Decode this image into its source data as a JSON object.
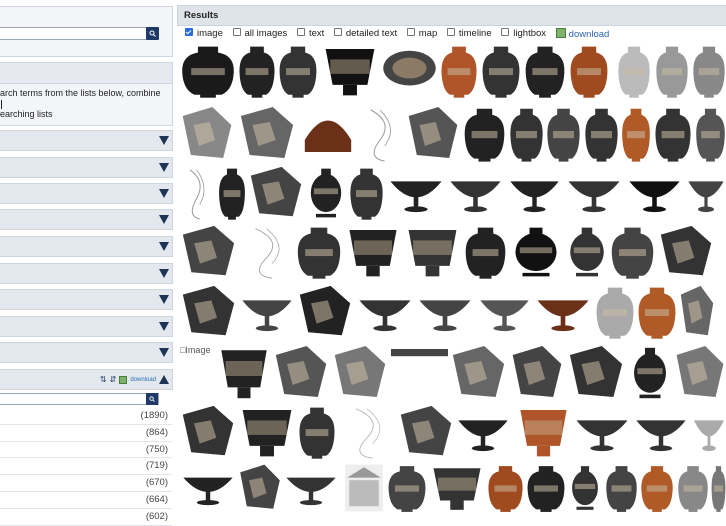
{
  "left": {
    "info_text_lines": [
      "arch terms from the lists below, combine",
      "earching lists"
    ],
    "facet_count": 9,
    "counts": [
      "(1890)",
      "(864)",
      "(750)",
      "(719)",
      "(670)",
      "(664)",
      "(602)"
    ],
    "open_facet_download": "download"
  },
  "results": {
    "title": "Results",
    "options": [
      {
        "label": "image",
        "checked": true
      },
      {
        "label": "all images",
        "checked": false
      },
      {
        "label": "text",
        "checked": false
      },
      {
        "label": "detailed text",
        "checked": false
      },
      {
        "label": "map",
        "checked": false
      },
      {
        "label": "timeline",
        "checked": false
      },
      {
        "label": "lightbox",
        "checked": false
      }
    ],
    "download_label": "download",
    "broken_image_alt": "Image"
  },
  "colors": {
    "accent": "#1f3a66",
    "facet_bg": "#e3e8ee",
    "header_bg": "#dfe4ea",
    "link": "#2c63b5"
  }
}
